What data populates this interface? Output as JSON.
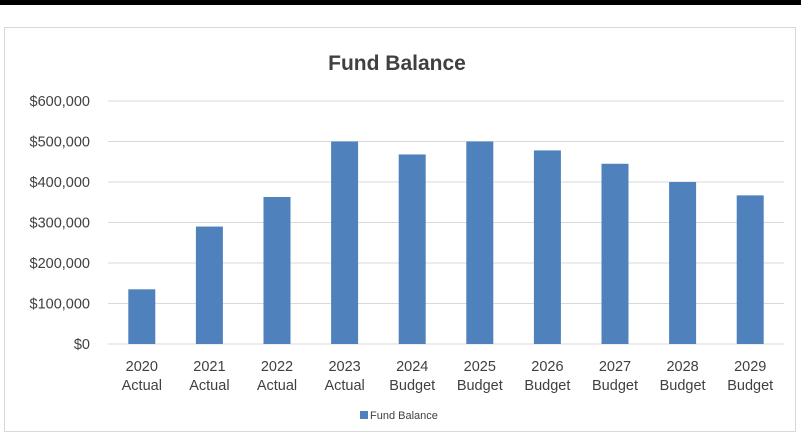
{
  "chart_data": {
    "type": "bar",
    "title": "Fund Balance",
    "xlabel": "",
    "ylabel": "",
    "categories": [
      [
        "2020",
        "Actual"
      ],
      [
        "2021",
        "Actual"
      ],
      [
        "2022",
        "Actual"
      ],
      [
        "2023",
        "Actual"
      ],
      [
        "2024",
        "Budget"
      ],
      [
        "2025",
        "Budget"
      ],
      [
        "2026",
        "Budget"
      ],
      [
        "2027",
        "Budget"
      ],
      [
        "2028",
        "Budget"
      ],
      [
        "2029",
        "Budget"
      ]
    ],
    "series": [
      {
        "name": "Fund Balance",
        "values": [
          135000,
          290000,
          363000,
          500000,
          468000,
          500000,
          478000,
          445000,
          400000,
          367000
        ]
      }
    ],
    "ylim": [
      0,
      600000
    ],
    "yticks": [
      0,
      100000,
      200000,
      300000,
      400000,
      500000,
      600000
    ],
    "ytick_labels": [
      "$0",
      "$100,000",
      "$200,000",
      "$300,000",
      "$400,000",
      "$500,000",
      "$600,000"
    ],
    "grid": true,
    "legend_position": "bottom",
    "colors": {
      "bar": "#4f81bd",
      "grid": "#d9d9d9",
      "text": "#404040"
    }
  }
}
